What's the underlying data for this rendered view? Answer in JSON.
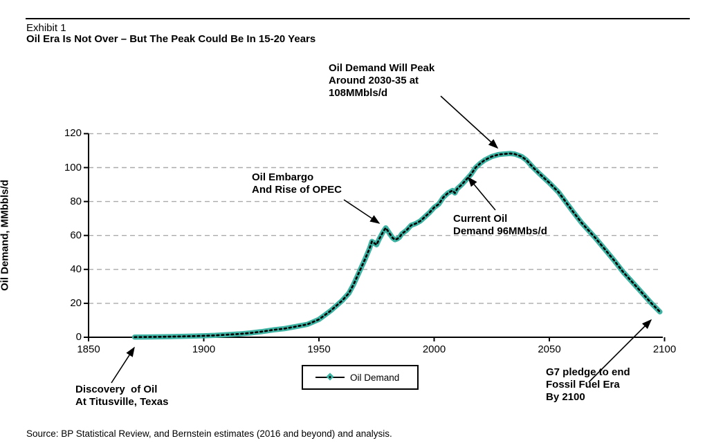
{
  "page": {
    "exhibit_label": "Exhibit 1",
    "title": "Oil Era Is Not Over – But The Peak Could Be In 15-20 Years",
    "source": "Source: BP Statistical Review, and Bernstein estimates (2016 and beyond) and analysis."
  },
  "colors": {
    "series": "#3FB3A3",
    "marker_dot": "#000000",
    "gridline": "#AAAAAA",
    "axis": "#000000",
    "text": "#000000"
  },
  "annotations": {
    "peak": "Oil Demand Will Peak\nAround 2030-35 at\n108MMbls/d",
    "embargo": "Oil Embargo\nAnd Rise of OPEC",
    "current": "Current Oil\nDemand 96MMbs/d",
    "discovery": "Discovery  of Oil\nAt Titusville, Texas",
    "g7": "G7 pledge to end\nFossil Fuel Era\nBy 2100"
  },
  "chart_data": {
    "type": "line",
    "title": "Oil Era Is Not Over – But The Peak Could Be In 15-20 Years",
    "xlabel": "",
    "ylabel": "Oil Demand, MMbbls/d",
    "xlim": [
      1850,
      2100
    ],
    "ylim": [
      0,
      120
    ],
    "x_ticks": [
      "1850",
      "1900",
      "1950",
      "2000",
      "2050",
      "2100"
    ],
    "y_ticks": [
      "0",
      "20",
      "40",
      "60",
      "80",
      "100",
      "120"
    ],
    "grid": "horizontal-dashed",
    "legend": {
      "position": "bottom-center",
      "entries": [
        "Oil Demand"
      ]
    },
    "key_values": {
      "peak_value_mmblsd": 108,
      "peak_years": "2030-35",
      "current_demand_mmbsd": 96,
      "end_year": 2100
    },
    "series": [
      {
        "name": "Oil Demand",
        "color": "#3FB3A3",
        "points": [
          [
            1870,
            0.1
          ],
          [
            1875,
            0.15
          ],
          [
            1880,
            0.25
          ],
          [
            1885,
            0.35
          ],
          [
            1890,
            0.5
          ],
          [
            1895,
            0.65
          ],
          [
            1900,
            0.85
          ],
          [
            1905,
            1.1
          ],
          [
            1910,
            1.5
          ],
          [
            1915,
            1.9
          ],
          [
            1920,
            2.5
          ],
          [
            1925,
            3.3
          ],
          [
            1930,
            4.3
          ],
          [
            1935,
            5.1
          ],
          [
            1940,
            6.3
          ],
          [
            1945,
            7.6
          ],
          [
            1950,
            10.5
          ],
          [
            1955,
            15.5
          ],
          [
            1960,
            21.5
          ],
          [
            1963,
            26
          ],
          [
            1965,
            31
          ],
          [
            1968,
            40
          ],
          [
            1970,
            46
          ],
          [
            1972,
            52.5
          ],
          [
            1973,
            56.5
          ],
          [
            1974,
            55.5
          ],
          [
            1975,
            54.5
          ],
          [
            1976,
            57.5
          ],
          [
            1977,
            60
          ],
          [
            1978,
            62.5
          ],
          [
            1979,
            64.5
          ],
          [
            1980,
            62.5
          ],
          [
            1981,
            60.5
          ],
          [
            1982,
            58.5
          ],
          [
            1983,
            57.5
          ],
          [
            1984,
            58
          ],
          [
            1985,
            59
          ],
          [
            1986,
            61
          ],
          [
            1988,
            63
          ],
          [
            1990,
            66
          ],
          [
            1992,
            67
          ],
          [
            1994,
            68.5
          ],
          [
            1996,
            71
          ],
          [
            1998,
            73.5
          ],
          [
            2000,
            76.5
          ],
          [
            2002,
            78.5
          ],
          [
            2004,
            82.5
          ],
          [
            2006,
            85
          ],
          [
            2008,
            86.5
          ],
          [
            2009,
            85
          ],
          [
            2010,
            87.5
          ],
          [
            2012,
            90
          ],
          [
            2014,
            93
          ],
          [
            2016,
            96
          ],
          [
            2018,
            100
          ],
          [
            2020,
            102.5
          ],
          [
            2022,
            104.5
          ],
          [
            2025,
            106.5
          ],
          [
            2028,
            107.7
          ],
          [
            2030,
            108
          ],
          [
            2033,
            108.3
          ],
          [
            2035,
            108
          ],
          [
            2038,
            106.5
          ],
          [
            2040,
            104.5
          ],
          [
            2043,
            100
          ],
          [
            2046,
            96
          ],
          [
            2050,
            91
          ],
          [
            2054,
            85.5
          ],
          [
            2057,
            80
          ],
          [
            2060,
            74.5
          ],
          [
            2064,
            67.5
          ],
          [
            2068,
            61.5
          ],
          [
            2070,
            58.5
          ],
          [
            2074,
            52
          ],
          [
            2078,
            45.5
          ],
          [
            2082,
            38.5
          ],
          [
            2086,
            32.5
          ],
          [
            2090,
            26.5
          ],
          [
            2094,
            20.5
          ],
          [
            2098,
            15
          ]
        ]
      }
    ]
  }
}
